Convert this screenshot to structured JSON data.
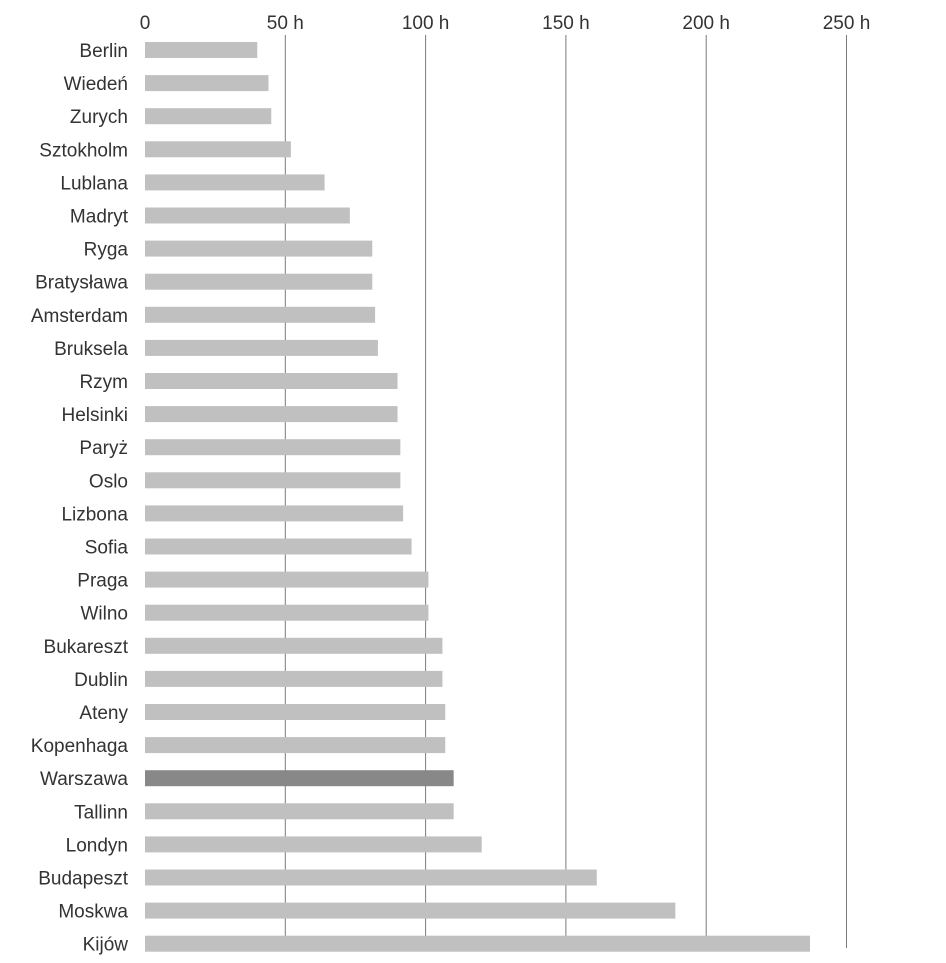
{
  "chart_data": {
    "type": "bar",
    "orientation": "horizontal",
    "x_axis_position": "top",
    "grid": true,
    "grid_lines": "vertical",
    "xlim": [
      0,
      250
    ],
    "xticks": [
      0,
      50,
      100,
      150,
      200,
      250
    ],
    "tick_labels": [
      "0",
      "50 h",
      "100 h",
      "150 h",
      "200 h",
      "250 h"
    ],
    "categories": [
      "Berlin",
      "Wiedeń",
      "Zurych",
      "Sztokholm",
      "Lublana",
      "Madryt",
      "Ryga",
      "Bratysława",
      "Amsterdam",
      "Bruksela",
      "Rzym",
      "Helsinki",
      "Paryż",
      "Oslo",
      "Lizbona",
      "Sofia",
      "Praga",
      "Wilno",
      "Bukareszt",
      "Dublin",
      "Ateny",
      "Kopenhaga",
      "Warszawa",
      "Tallinn",
      "Londyn",
      "Budapeszt",
      "Moskwa",
      "Kijów"
    ],
    "values": [
      40,
      44,
      45,
      52,
      64,
      73,
      81,
      81,
      82,
      83,
      90,
      90,
      91,
      91,
      92,
      95,
      101,
      101,
      106,
      106,
      107,
      107,
      110,
      110,
      120,
      161,
      189,
      237
    ],
    "highlighted_category": "Warszawa",
    "colors": {
      "bar": "#c0c0c0",
      "highlight": "#888888",
      "grid": "#7a7a7a",
      "text": "#333333"
    }
  }
}
